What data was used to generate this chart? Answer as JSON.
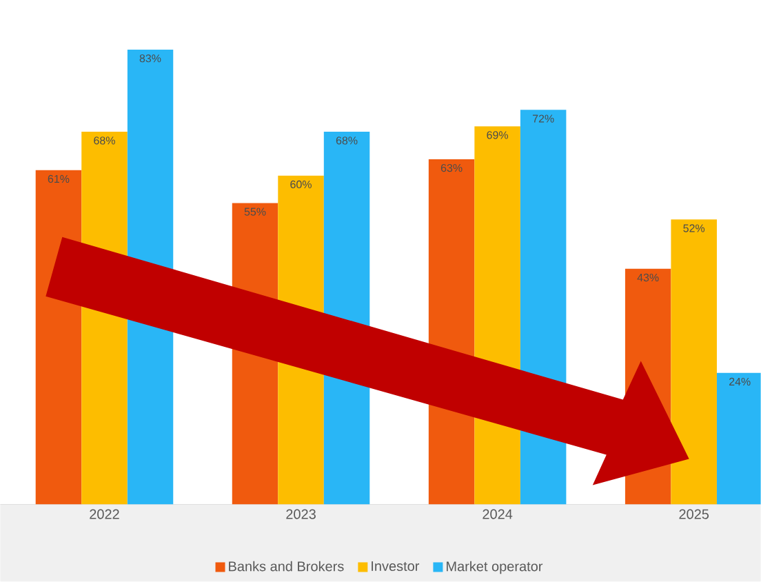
{
  "chart_data": {
    "type": "bar",
    "categories": [
      "2022",
      "2023",
      "2024",
      "2025"
    ],
    "series": [
      {
        "name": "Banks and Brokers",
        "color": "#f05a0e",
        "values": [
          61,
          55,
          63,
          43
        ],
        "value_labels": [
          "61%",
          "55%",
          "63%",
          "43%"
        ]
      },
      {
        "name": "Investor",
        "color": "#fdbd00",
        "values": [
          68,
          60,
          69,
          52
        ],
        "value_labels": [
          "68%",
          "60%",
          "69%",
          "52%"
        ]
      },
      {
        "name": "Market operator",
        "color": "#29b6f6",
        "values": [
          83,
          68,
          72,
          24
        ],
        "value_labels": [
          "83%",
          "68%",
          "72%",
          "24%"
        ]
      }
    ],
    "tick_labels": "x",
    "grid": false,
    "legend": "bottom"
  }
}
